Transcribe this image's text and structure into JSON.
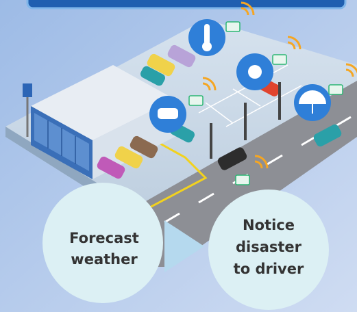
{
  "circles": [
    {
      "lines": [
        "Forecast",
        "weather"
      ]
    },
    {
      "lines": [
        "Notice",
        "disaster",
        "to driver"
      ]
    }
  ]
}
